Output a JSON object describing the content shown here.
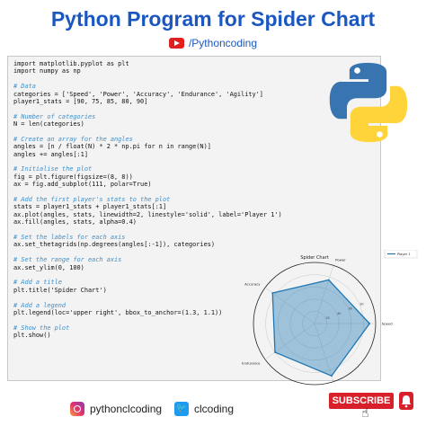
{
  "header": {
    "title": "Python Program for Spider Chart",
    "channel": "/Pythoncoding"
  },
  "code_lines": [
    "import matplotlib.pyplot as plt",
    "import numpy as np",
    "",
    "# Data",
    "categories = ['Speed', 'Power', 'Accuracy', 'Endurance', 'Agility']",
    "player1_stats = [90, 75, 85, 80, 90]",
    "",
    "# Number of categories",
    "N = len(categories)",
    "",
    "# Create an array for the angles",
    "angles = [n / float(N) * 2 * np.pi for n in range(N)]",
    "angles += angles[:1]",
    "",
    "# Initialise the plot",
    "fig = plt.figure(figsize=(8, 8))",
    "ax = fig.add_subplot(111, polar=True)",
    "",
    "# Add the first player's stats to the plot",
    "stats = player1_stats + player1_stats[:1]",
    "ax.plot(angles, stats, linewidth=2, linestyle='solid', label='Player 1')",
    "ax.fill(angles, stats, alpha=0.4)",
    "",
    "# Set the labels for each axis",
    "ax.set_thetagrids(np.degrees(angles[:-1]), categories)",
    "",
    "# Set the range for each axis",
    "ax.set_ylim(0, 100)",
    "",
    "# Add a title",
    "plt.title('Spider Chart')",
    "",
    "# Add a legend",
    "plt.legend(loc='upper right', bbox_to_anchor=(1.3, 1.1))",
    "",
    "# Show the plot",
    "plt.show()"
  ],
  "chart_data": {
    "type": "radar",
    "title": "Spider Chart",
    "categories": [
      "Speed",
      "Power",
      "Accuracy",
      "Endurance",
      "Agility"
    ],
    "series": [
      {
        "name": "Player 1",
        "values": [
          90,
          75,
          85,
          80,
          90
        ]
      }
    ],
    "rlim": [
      0,
      100
    ],
    "rticks": [
      "20",
      "40",
      "60",
      "80"
    ],
    "legend": "top-right",
    "color": "#1f77b4"
  },
  "footer": {
    "instagram": "pythonclcoding",
    "twitter": "clcoding",
    "subscribe_label": "SUBSCRIBE"
  },
  "colors": {
    "title": "#1a57c0",
    "comment": "#3f8fc8",
    "subscribe": "#d8202a"
  }
}
